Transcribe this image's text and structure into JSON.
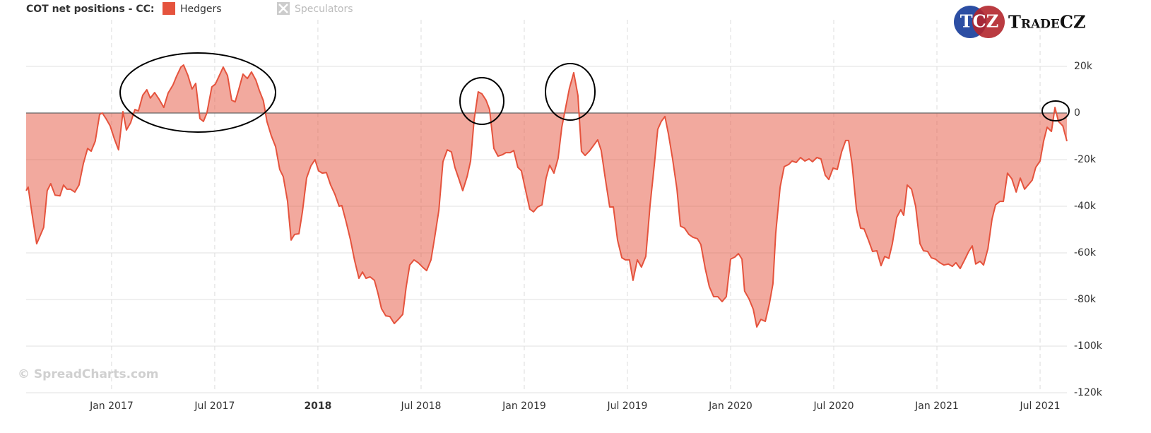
{
  "chart_data": {
    "type": "area",
    "title": "COT net positions - CC:",
    "watermark": "© SpreadCharts.com",
    "logo": {
      "mark": "TCZ",
      "text": "TradeCZ"
    },
    "grid": true,
    "threshold": 0,
    "xlim": [
      2016.586,
      2021.63
    ],
    "ylim": [
      -120000,
      40000
    ],
    "xticks": [
      {
        "value": 2017,
        "label": "Jan 2017"
      },
      {
        "value": 2017.5,
        "label": "Jul 2017"
      },
      2018,
      {
        "value": 2018.5,
        "label": "Jul 2018"
      },
      {
        "value": 2019,
        "label": "Jan 2019"
      },
      {
        "value": 2019.5,
        "label": "Jul 2019"
      },
      {
        "value": 2020,
        "label": "Jan 2020"
      },
      {
        "value": 2020.5,
        "label": "Jul 2020"
      },
      {
        "value": 2021,
        "label": "Jan 2021"
      },
      {
        "value": 2021.5,
        "label": "Jul 2021"
      }
    ],
    "yticks": [
      {
        "value": -120000,
        "label": "-120k"
      },
      {
        "value": -100000,
        "label": "-100k"
      },
      {
        "value": -80000,
        "label": "-80k"
      },
      {
        "value": -60000,
        "label": "-60k"
      },
      {
        "value": -40000,
        "label": "-40k"
      },
      {
        "value": -20000,
        "label": "-20k"
      },
      0,
      {
        "value": 20000,
        "label": "20k"
      }
    ],
    "x": [
      2016.586,
      2016.596,
      2016.613,
      2016.637,
      2016.671,
      2016.688,
      2016.705,
      2016.726,
      2016.75,
      2016.767,
      2016.784,
      2016.801,
      2016.822,
      2016.842,
      2016.863,
      2016.884,
      2016.901,
      2016.921,
      2016.942,
      2016.955,
      2016.973,
      2016.993,
      2017.014,
      2017.034,
      2017.055,
      2017.072,
      2017.092,
      2017.113,
      2017.13,
      2017.151,
      2017.171,
      2017.188,
      2017.209,
      2017.229,
      2017.253,
      2017.274,
      2017.298,
      2017.315,
      2017.336,
      2017.349,
      2017.37,
      2017.39,
      2017.408,
      2017.428,
      2017.445,
      2017.462,
      2017.486,
      2017.503,
      2017.524,
      2017.541,
      2017.562,
      2017.582,
      2017.599,
      2017.616,
      2017.637,
      2017.658,
      2017.678,
      2017.699,
      2017.716,
      2017.736,
      2017.753,
      2017.774,
      2017.795,
      2017.815,
      2017.832,
      2017.853,
      2017.87,
      2017.887,
      2017.908,
      2017.925,
      2017.945,
      2017.966,
      2017.986,
      2018.003,
      2018.021,
      2018.041,
      2018.062,
      2018.082,
      2018.103,
      2018.116,
      2018.137,
      2018.158,
      2018.178,
      2018.199,
      2018.216,
      2018.233,
      2018.253,
      2018.274,
      2018.291,
      2018.308,
      2018.329,
      2018.349,
      2018.37,
      2018.39,
      2018.411,
      2018.428,
      2018.445,
      2018.466,
      2018.486,
      2018.507,
      2018.527,
      2018.548,
      2018.565,
      2018.586,
      2018.606,
      2018.627,
      2018.647,
      2018.664,
      2018.685,
      2018.702,
      2018.723,
      2018.74,
      2018.757,
      2018.777,
      2018.795,
      2018.815,
      2018.832,
      2018.853,
      2018.873,
      2018.894,
      2018.911,
      2018.932,
      2018.949,
      2018.969,
      2018.986,
      2019.007,
      2019.027,
      2019.045,
      2019.065,
      2019.086,
      2019.106,
      2019.123,
      2019.144,
      2019.164,
      2019.182,
      2019.202,
      2019.219,
      2019.24,
      2019.26,
      2019.277,
      2019.295,
      2019.315,
      2019.336,
      2019.356,
      2019.373,
      2019.394,
      2019.414,
      2019.432,
      2019.452,
      2019.473,
      2019.49,
      2019.51,
      2019.527,
      2019.548,
      2019.568,
      2019.589,
      2019.61,
      2019.63,
      2019.647,
      2019.664,
      2019.682,
      2019.699,
      2019.719,
      2019.74,
      2019.757,
      2019.777,
      2019.798,
      2019.818,
      2019.839,
      2019.856,
      2019.877,
      2019.897,
      2019.918,
      2019.938,
      2019.959,
      2019.979,
      2020.0,
      2020.021,
      2020.038,
      2020.055,
      2020.068,
      2020.089,
      2020.11,
      2020.127,
      2020.147,
      2020.168,
      2020.188,
      2020.205,
      2020.219,
      2020.24,
      2020.26,
      2020.281,
      2020.298,
      2020.318,
      2020.339,
      2020.36,
      2020.38,
      2020.397,
      2020.418,
      2020.438,
      2020.459,
      2020.476,
      2020.497,
      2020.517,
      2020.538,
      2020.558,
      2020.572,
      2020.589,
      2020.61,
      2020.63,
      2020.647,
      2020.668,
      2020.688,
      2020.709,
      2020.729,
      2020.747,
      2020.767,
      2020.784,
      2020.805,
      2020.825,
      2020.839,
      2020.856,
      2020.877,
      2020.897,
      2020.918,
      2020.935,
      2020.955,
      2020.973,
      2020.993,
      2021.014,
      2021.034,
      2021.055,
      2021.075,
      2021.092,
      2021.113,
      2021.134,
      2021.154,
      2021.171,
      2021.188,
      2021.209,
      2021.226,
      2021.247,
      2021.267,
      2021.284,
      2021.305,
      2021.322,
      2021.342,
      2021.363,
      2021.384,
      2021.404,
      2021.425,
      2021.442,
      2021.462,
      2021.479,
      2021.5,
      2021.517,
      2021.534,
      2021.555,
      2021.572,
      2021.589,
      2021.61,
      2021.63
    ],
    "series": [
      {
        "name": "Hedgers",
        "color": "#e5533d",
        "visible": true,
        "values": [
          -33300,
          -31800,
          -42400,
          -56100,
          -49100,
          -33300,
          -30300,
          -35200,
          -35500,
          -30900,
          -32700,
          -32700,
          -33900,
          -30900,
          -21800,
          -15200,
          -16400,
          -12100,
          -600,
          0,
          -2400,
          -5500,
          -11200,
          -15800,
          600,
          -7300,
          -4200,
          1500,
          900,
          7600,
          10000,
          6400,
          8800,
          6100,
          2400,
          8500,
          12100,
          15800,
          19700,
          20600,
          16100,
          10300,
          12700,
          -2400,
          -3600,
          0,
          11200,
          12400,
          16400,
          19700,
          16100,
          5500,
          4800,
          10000,
          16700,
          14800,
          17600,
          14200,
          9700,
          5200,
          -3600,
          -9700,
          -14500,
          -24200,
          -27300,
          -37900,
          -54500,
          -52100,
          -51800,
          -42400,
          -27900,
          -22700,
          -20000,
          -24800,
          -25800,
          -25500,
          -30900,
          -34800,
          -40000,
          -39700,
          -46700,
          -54500,
          -63300,
          -70900,
          -68200,
          -70900,
          -70300,
          -71800,
          -77300,
          -83900,
          -87000,
          -87300,
          -90300,
          -88500,
          -86400,
          -74500,
          -65200,
          -63000,
          -64200,
          -66100,
          -67600,
          -63000,
          -53900,
          -41800,
          -20900,
          -15800,
          -16700,
          -23300,
          -28800,
          -33300,
          -27300,
          -20600,
          -3000,
          9100,
          8200,
          5500,
          1500,
          -15200,
          -18500,
          -17900,
          -17000,
          -17000,
          -16100,
          -23300,
          -24800,
          -33300,
          -41200,
          -42400,
          -40300,
          -39400,
          -27900,
          -22400,
          -25800,
          -19400,
          -6100,
          3000,
          10600,
          17300,
          7600,
          -16400,
          -18200,
          -16400,
          -13900,
          -11500,
          -16100,
          -28800,
          -40300,
          -40300,
          -54500,
          -62100,
          -63000,
          -63000,
          -71800,
          -63000,
          -66100,
          -61500,
          -39400,
          -22700,
          -7000,
          -3600,
          -1500,
          -9100,
          -19700,
          -32700,
          -48500,
          -49400,
          -52100,
          -53300,
          -53900,
          -56400,
          -66700,
          -74500,
          -78800,
          -78800,
          -80900,
          -78800,
          -62700,
          -61800,
          -60300,
          -62700,
          -76400,
          -79700,
          -84200,
          -91800,
          -88500,
          -89400,
          -81800,
          -73300,
          -51500,
          -31800,
          -23000,
          -22100,
          -20600,
          -21200,
          -19100,
          -20600,
          -19700,
          -20900,
          -19100,
          -19700,
          -26700,
          -28500,
          -23600,
          -24200,
          -16700,
          -11800,
          -11800,
          -22100,
          -41200,
          -49400,
          -49700,
          -54500,
          -59400,
          -59100,
          -65500,
          -61500,
          -62400,
          -56100,
          -44800,
          -41500,
          -43900,
          -30900,
          -32700,
          -40000,
          -56100,
          -59100,
          -59400,
          -62100,
          -62700,
          -64200,
          -65200,
          -64800,
          -65800,
          -64200,
          -66700,
          -63000,
          -59400,
          -57000,
          -64800,
          -63600,
          -65200,
          -58200,
          -45500,
          -39400,
          -37900,
          -37900,
          -25800,
          -28200,
          -33900,
          -27900,
          -32700,
          -30900,
          -28800,
          -23300,
          -20600,
          -12100,
          -6100,
          -7900,
          2400,
          -3600,
          -5500,
          -12100
        ]
      },
      {
        "name": "Speculators",
        "color": "#cccccc",
        "visible": false
      }
    ]
  }
}
